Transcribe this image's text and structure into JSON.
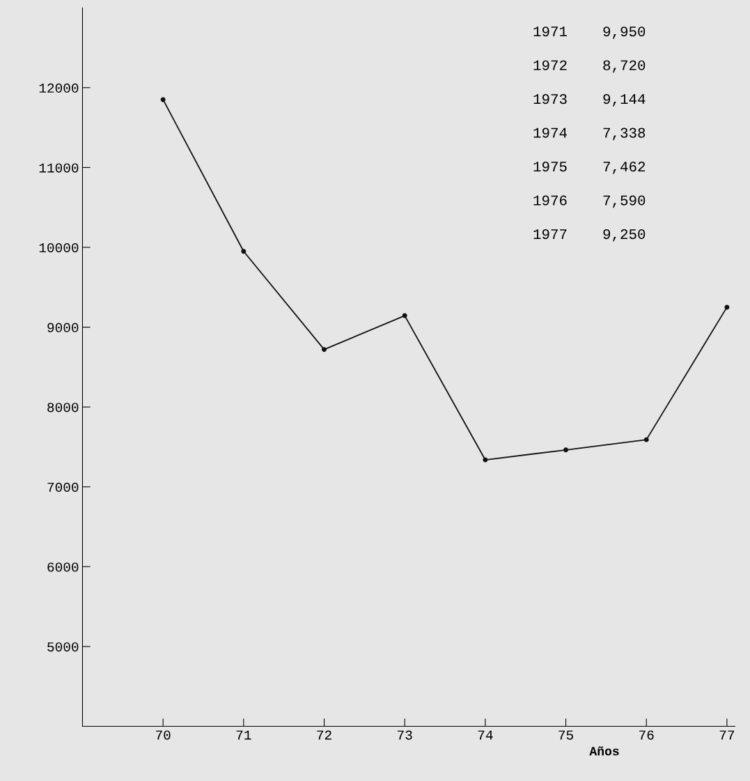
{
  "chart_data": {
    "type": "line",
    "xlabel": "Años",
    "x": [
      70,
      71,
      72,
      73,
      74,
      75,
      76,
      77
    ],
    "series": [
      {
        "color": "#111111",
        "values": [
          11850,
          9950,
          8720,
          9144,
          7338,
          7462,
          7590,
          9250
        ]
      }
    ],
    "xlim": [
      69,
      77.1
    ],
    "xticks": [
      70,
      71,
      72,
      73,
      74,
      75,
      76,
      77
    ],
    "ylim": [
      4000,
      13000
    ],
    "yticks": [
      5000,
      6000,
      7000,
      8000,
      9000,
      10000,
      11000,
      12000
    ],
    "marker": "circle",
    "line_style": "solid",
    "grid": false,
    "annotations": [
      "1971    9,950",
      "1972    8,720",
      "1973    9,144",
      "1974    7,338",
      "1975    7,462",
      "1976    7,590",
      "1977    9,250"
    ]
  }
}
